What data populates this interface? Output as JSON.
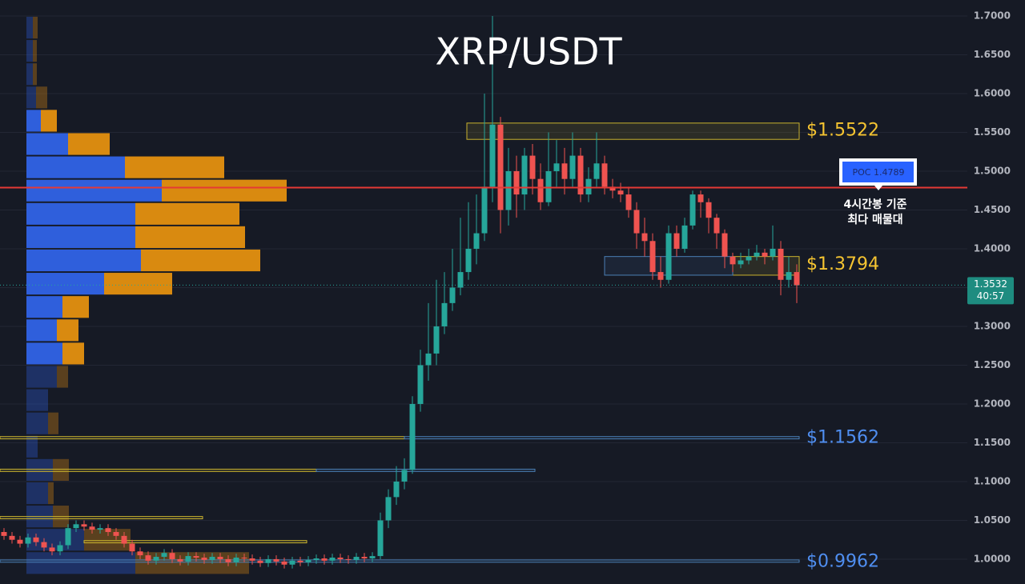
{
  "chart_data": {
    "type": "candlestick",
    "title": "XRP/USDT",
    "ylim": [
      0.968,
      1.7206
    ],
    "xlim": [
      -0.5,
      99.5
    ],
    "yticks": [
      {
        "value": 1.0,
        "label": "1.0000"
      },
      {
        "value": 1.05,
        "label": "1.0500"
      },
      {
        "value": 1.1,
        "label": "1.1000"
      },
      {
        "value": 1.15,
        "label": "1.1500"
      },
      {
        "value": 1.2,
        "label": "1.2000"
      },
      {
        "value": 1.25,
        "label": "1.2500"
      },
      {
        "value": 1.3,
        "label": "1.3000"
      },
      {
        "value": 1.35,
        "label": "1.3500"
      },
      {
        "value": 1.4,
        "label": "1.4000"
      },
      {
        "value": 1.45,
        "label": "1.4500"
      },
      {
        "value": 1.5,
        "label": "1.5000"
      },
      {
        "value": 1.55,
        "label": "1.5500"
      },
      {
        "value": 1.6,
        "label": "1.6000"
      },
      {
        "value": 1.65,
        "label": "1.6500"
      },
      {
        "value": 1.7,
        "label": "1.7000"
      }
    ],
    "grid": true,
    "up_color": "#26a69a",
    "down_color": "#ef5350",
    "open": [
      1.035,
      1.03,
      1.025,
      1.02,
      1.028,
      1.022,
      1.015,
      1.01,
      1.018,
      1.04,
      1.045,
      1.042,
      1.038,
      1.04,
      1.035,
      1.03,
      1.02,
      1.01,
      1.005,
      0.998,
      1.003,
      1.008,
      1.0,
      0.997,
      1.004,
      1.002,
      0.999,
      1.003,
      1.0,
      0.996,
      1.002,
      1.001,
      0.998,
      0.995,
      1.0,
      0.997,
      0.993,
      0.998,
      0.996,
      0.999,
      1.001,
      0.998,
      1.002,
      1.0,
      0.999,
      1.003,
      1.001,
      1.004,
      1.05,
      1.08,
      1.1,
      1.115,
      1.2,
      1.25,
      1.265,
      1.3,
      1.33,
      1.35,
      1.37,
      1.4,
      1.42,
      1.48,
      1.56,
      1.45,
      1.5,
      1.47,
      1.52,
      1.49,
      1.46,
      1.5,
      1.51,
      1.49,
      1.52,
      1.47,
      1.49,
      1.51,
      1.48,
      1.475,
      1.47,
      1.45,
      1.42,
      1.41,
      1.37,
      1.36,
      1.42,
      1.4,
      1.43,
      1.47,
      1.46,
      1.44,
      1.42,
      1.39,
      1.38,
      1.385,
      1.39,
      1.395,
      1.39,
      1.4,
      1.36,
      1.37
    ],
    "high": [
      1.04,
      1.035,
      1.03,
      1.033,
      1.033,
      1.027,
      1.02,
      1.023,
      1.045,
      1.05,
      1.05,
      1.047,
      1.045,
      1.045,
      1.04,
      1.035,
      1.025,
      1.015,
      1.01,
      1.008,
      1.013,
      1.013,
      1.005,
      1.009,
      1.009,
      1.007,
      1.008,
      1.008,
      1.005,
      1.007,
      1.007,
      1.006,
      1.003,
      1.005,
      1.005,
      1.002,
      1.003,
      1.003,
      1.004,
      1.006,
      1.006,
      1.007,
      1.007,
      1.005,
      1.008,
      1.008,
      1.009,
      1.06,
      1.09,
      1.12,
      1.13,
      1.21,
      1.27,
      1.33,
      1.36,
      1.37,
      1.4,
      1.44,
      1.46,
      1.47,
      1.6,
      1.7,
      1.57,
      1.53,
      1.52,
      1.53,
      1.535,
      1.51,
      1.55,
      1.54,
      1.53,
      1.55,
      1.53,
      1.505,
      1.55,
      1.52,
      1.49,
      1.485,
      1.48,
      1.46,
      1.44,
      1.42,
      1.39,
      1.43,
      1.43,
      1.44,
      1.475,
      1.475,
      1.465,
      1.445,
      1.425,
      1.395,
      1.395,
      1.4,
      1.405,
      1.4,
      1.43,
      1.41,
      1.39,
      1.38
    ],
    "low": [
      1.025,
      1.02,
      1.015,
      1.015,
      1.017,
      1.01,
      1.005,
      1.005,
      1.013,
      1.035,
      1.037,
      1.033,
      1.033,
      1.03,
      1.025,
      1.015,
      1.005,
      1.0,
      0.993,
      0.993,
      0.998,
      0.995,
      0.992,
      0.992,
      0.997,
      0.994,
      0.994,
      0.995,
      0.991,
      0.991,
      0.996,
      0.993,
      0.99,
      0.99,
      0.992,
      0.988,
      0.988,
      0.991,
      0.991,
      0.994,
      0.993,
      0.993,
      0.995,
      0.994,
      0.994,
      0.996,
      0.996,
      1.0,
      1.04,
      1.07,
      1.09,
      1.11,
      1.19,
      1.23,
      1.25,
      1.29,
      1.32,
      1.34,
      1.36,
      1.38,
      1.41,
      1.46,
      1.42,
      1.43,
      1.44,
      1.45,
      1.47,
      1.45,
      1.455,
      1.48,
      1.47,
      1.48,
      1.46,
      1.46,
      1.48,
      1.47,
      1.465,
      1.46,
      1.44,
      1.4,
      1.39,
      1.36,
      1.35,
      1.355,
      1.39,
      1.395,
      1.425,
      1.44,
      1.42,
      1.4,
      1.375,
      1.37,
      1.375,
      1.38,
      1.385,
      1.38,
      1.385,
      1.34,
      1.35,
      1.33
    ],
    "close": [
      1.03,
      1.025,
      1.02,
      1.028,
      1.022,
      1.015,
      1.01,
      1.018,
      1.04,
      1.045,
      1.042,
      1.038,
      1.04,
      1.035,
      1.03,
      1.02,
      1.01,
      1.005,
      0.998,
      1.003,
      1.008,
      1.0,
      0.997,
      1.004,
      1.002,
      0.999,
      1.003,
      1.0,
      0.996,
      1.002,
      1.001,
      0.998,
      0.995,
      1.0,
      0.997,
      0.993,
      0.998,
      0.996,
      0.999,
      1.001,
      0.998,
      1.002,
      1.0,
      0.999,
      1.003,
      1.001,
      1.004,
      1.05,
      1.08,
      1.1,
      1.115,
      1.2,
      1.25,
      1.265,
      1.3,
      1.33,
      1.35,
      1.37,
      1.4,
      1.42,
      1.48,
      1.56,
      1.45,
      1.5,
      1.47,
      1.52,
      1.49,
      1.46,
      1.5,
      1.51,
      1.49,
      1.52,
      1.47,
      1.49,
      1.51,
      1.48,
      1.475,
      1.47,
      1.45,
      1.42,
      1.41,
      1.37,
      1.36,
      1.42,
      1.4,
      1.43,
      1.47,
      1.46,
      1.44,
      1.42,
      1.39,
      1.38,
      1.385,
      1.39,
      1.395,
      1.39,
      1.4,
      1.36,
      1.37,
      1.353
    ],
    "volume_profile": {
      "levels": [
        1.685,
        1.655,
        1.625,
        1.595,
        1.565,
        1.535,
        1.505,
        1.475,
        1.445,
        1.415,
        1.385,
        1.355,
        1.325,
        1.295,
        1.265,
        1.235,
        1.205,
        1.175,
        1.145,
        1.115,
        1.085,
        1.055,
        1.025,
        0.995
      ],
      "buy": [
        8,
        8,
        8,
        12,
        18,
        52,
        123,
        169,
        136,
        136,
        143,
        97,
        45,
        38,
        45,
        38,
        27,
        27,
        14,
        33,
        27,
        33,
        72,
        136
      ],
      "sell": [
        6,
        5,
        5,
        14,
        20,
        52,
        124,
        156,
        130,
        137,
        149,
        85,
        33,
        27,
        27,
        14,
        0,
        13,
        0,
        20,
        7,
        20,
        58,
        142
      ],
      "buy_color": "#2f5fdc",
      "sell_color": "#d98a10",
      "value_area": [
        1.25,
        1.58
      ]
    },
    "zones": [
      {
        "low": 1.541,
        "high": 1.562,
        "start": 57.8,
        "end": 99.3,
        "color": "#c9b22e"
      },
      {
        "low": 1.366,
        "high": 1.39,
        "start": 91,
        "end": 99.3,
        "color": "#c9b22e"
      },
      {
        "low": 1.366,
        "high": 1.39,
        "start": 75,
        "end": 91,
        "color": "#4a7fb5"
      },
      {
        "low": 1.155,
        "high": 1.158,
        "start": -0.5,
        "end": 50,
        "color": "#c9b22e"
      },
      {
        "low": 1.155,
        "high": 1.158,
        "start": 50,
        "end": 99.3,
        "color": "#4a7fb5"
      },
      {
        "low": 1.113,
        "high": 1.116,
        "start": -0.5,
        "end": 39,
        "color": "#c9b22e"
      },
      {
        "low": 1.113,
        "high": 1.116,
        "start": 39,
        "end": 66.3,
        "color": "#4a7fb5"
      },
      {
        "low": 1.052,
        "high": 1.055,
        "start": -0.5,
        "end": 24.8,
        "color": "#c9b22e"
      },
      {
        "low": 1.021,
        "high": 1.024,
        "start": 10,
        "end": 37.8,
        "color": "#c9b22e"
      },
      {
        "low": 0.996,
        "high": 0.999,
        "start": -0.5,
        "end": 99.3,
        "color": "#4a7fb5"
      }
    ],
    "levels": [
      {
        "value": 1.5522,
        "label": "$1.5522",
        "color": "#f5c431"
      },
      {
        "value": 1.3794,
        "label": "$1.3794",
        "color": "#f5c431"
      },
      {
        "value": 1.1562,
        "label": "$1.1562",
        "color": "#4f8ef0"
      },
      {
        "value": 0.9962,
        "label": "$0.9962",
        "color": "#4f8ef0"
      }
    ],
    "poc": {
      "value": 1.4789,
      "label": "POC 1.4789",
      "color": "#e53935"
    },
    "annotation": [
      "4시간봉 기준",
      "최다 매물대"
    ],
    "current_price": 1.3532,
    "countdown": "40:57"
  }
}
